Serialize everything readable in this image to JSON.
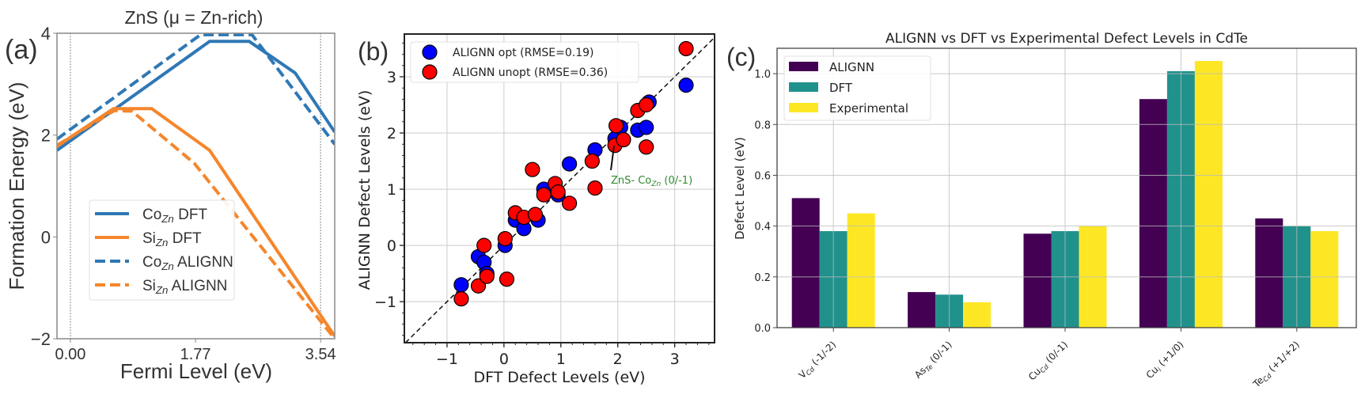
{
  "chart_data": [
    {
      "type": "line",
      "panel_label": "(a)",
      "title": "ZnS  (μ = Zn-rich)",
      "xlabel": "Fermi Level (eV)",
      "ylabel": "Formation Energy (eV)",
      "xlim": [
        -0.19,
        3.74
      ],
      "ylim": [
        -2,
        4
      ],
      "xticks": [
        "0.00",
        "1.77",
        "3.54"
      ],
      "xtick_values": [
        0,
        1.77,
        3.54
      ],
      "yticks": [
        4,
        2,
        0,
        -2
      ],
      "vlines_dotted": [
        0,
        3.54
      ],
      "grid": false,
      "legend_placement": "center-left",
      "series": [
        {
          "name": {
            "main": "Co",
            "sub": "Zn",
            "rest": " DFT"
          },
          "color": "#2f78b5",
          "dash": false,
          "x": [
            -0.19,
            1.97,
            2.53,
            3.18,
            3.74
          ],
          "y": [
            1.7,
            3.84,
            3.84,
            3.22,
            2.06
          ]
        },
        {
          "name": {
            "main": "Si",
            "sub": "Zn",
            "rest": " DFT"
          },
          "color": "#f5862b",
          "dash": false,
          "x": [
            -0.19,
            0.61,
            1.15,
            1.97,
            3.74
          ],
          "y": [
            1.78,
            2.52,
            2.52,
            1.7,
            -1.95
          ]
        },
        {
          "name": {
            "main": "Co",
            "sub": "Zn",
            "rest": " ALIGNN"
          },
          "color": "#2f78b5",
          "dash": true,
          "x": [
            -0.19,
            1.84,
            2.57,
            3.74
          ],
          "y": [
            1.92,
            3.97,
            3.97,
            1.82
          ]
        },
        {
          "name": {
            "main": "Si",
            "sub": "Zn",
            "rest": " ALIGNN"
          },
          "color": "#f5862b",
          "dash": true,
          "x": [
            -0.19,
            0.62,
            0.87,
            1.75,
            3.74
          ],
          "y": [
            1.8,
            2.48,
            2.47,
            1.45,
            -2.0
          ]
        }
      ]
    },
    {
      "type": "scatter",
      "panel_label": "(b)",
      "xlabel": "DFT Defect Levels (eV)",
      "ylabel": "ALIGNN Defect Levels (eV)",
      "xlim": [
        -1.75,
        3.7
      ],
      "ylim": [
        -1.73,
        3.76
      ],
      "xticks": [
        -1,
        0,
        1,
        2,
        3
      ],
      "yticks": [
        -1,
        0,
        1,
        2,
        3
      ],
      "grid": true,
      "legend_placement": "top-left",
      "reference_line": "y = x (dashed)",
      "annotation": {
        "main": "ZnS- Co",
        "sub": "Zn",
        "rest": " (0/-1)",
        "color": "#2e8b2e",
        "points_to": [
          1.95,
          1.78
        ]
      },
      "series": [
        {
          "name": "ALIGNN opt (RMSE=0.19)",
          "color": "#0000ff",
          "points": [
            [
              -0.75,
              -0.7
            ],
            [
              -0.45,
              -0.2
            ],
            [
              -0.35,
              -0.3
            ],
            [
              -0.3,
              -0.5
            ],
            [
              0.02,
              0
            ],
            [
              0.2,
              0.45
            ],
            [
              0.35,
              0.3
            ],
            [
              0.6,
              0.45
            ],
            [
              0.7,
              1.0
            ],
            [
              0.95,
              0.9
            ],
            [
              1.15,
              1.45
            ],
            [
              1.6,
              1.7
            ],
            [
              1.95,
              1.9
            ],
            [
              2.05,
              2.1
            ],
            [
              2.35,
              2.05
            ],
            [
              2.5,
              2.1
            ],
            [
              2.55,
              2.55
            ],
            [
              3.2,
              2.85
            ]
          ]
        },
        {
          "name": "ALIGNN unopt (RMSE=0.36)",
          "color": "#ff0000",
          "points": [
            [
              -0.75,
              -0.95
            ],
            [
              -0.45,
              -0.72
            ],
            [
              -0.35,
              0
            ],
            [
              -0.3,
              -0.55
            ],
            [
              0.05,
              -0.6
            ],
            [
              0.02,
              0.12
            ],
            [
              0.2,
              0.58
            ],
            [
              0.35,
              0.5
            ],
            [
              0.55,
              0.55
            ],
            [
              0.5,
              1.35
            ],
            [
              0.7,
              0.9
            ],
            [
              0.9,
              1.1
            ],
            [
              0.95,
              0.95
            ],
            [
              1.15,
              0.75
            ],
            [
              1.55,
              1.5
            ],
            [
              1.6,
              1.02
            ],
            [
              1.95,
              1.78
            ],
            [
              1.97,
              2.13
            ],
            [
              2.1,
              1.88
            ],
            [
              2.35,
              2.4
            ],
            [
              2.5,
              2.5
            ],
            [
              2.5,
              1.75
            ],
            [
              3.2,
              3.5
            ]
          ]
        }
      ]
    },
    {
      "type": "bar",
      "panel_label": "(c)",
      "title": "ALIGNN vs DFT vs Experimental Defect Levels in CdTe",
      "xlabel": "",
      "ylabel": "Defect Level (eV)",
      "ylim": [
        0,
        1.1
      ],
      "yticks": [
        "0.0",
        "0.2",
        "0.4",
        "0.6",
        "0.8",
        "1.0"
      ],
      "ytick_values": [
        0,
        0.2,
        0.4,
        0.6,
        0.8,
        1.0
      ],
      "grid": true,
      "legend_placement": "top-left",
      "categories": [
        {
          "main": "V",
          "sub": "Cd",
          "rest": " (-1/-2)"
        },
        {
          "main": "As",
          "sub": "Te",
          "rest": " (0/-1)"
        },
        {
          "main": "Cu",
          "sub": "Cd",
          "rest": " (0/-1)"
        },
        {
          "main": "Cu",
          "sub": "i",
          "rest": " (+1/0)"
        },
        {
          "main": "Te",
          "sub": "Cd",
          "rest": " (+1/+2)"
        }
      ],
      "series": [
        {
          "name": "ALIGNN",
          "color": "#440154",
          "values": [
            0.51,
            0.14,
            0.37,
            0.9,
            0.43
          ]
        },
        {
          "name": "DFT",
          "color": "#21918c",
          "values": [
            0.38,
            0.13,
            0.38,
            1.01,
            0.4
          ]
        },
        {
          "name": "Experimental",
          "color": "#fde725",
          "values": [
            0.45,
            0.1,
            0.4,
            1.05,
            0.38
          ]
        }
      ]
    }
  ]
}
